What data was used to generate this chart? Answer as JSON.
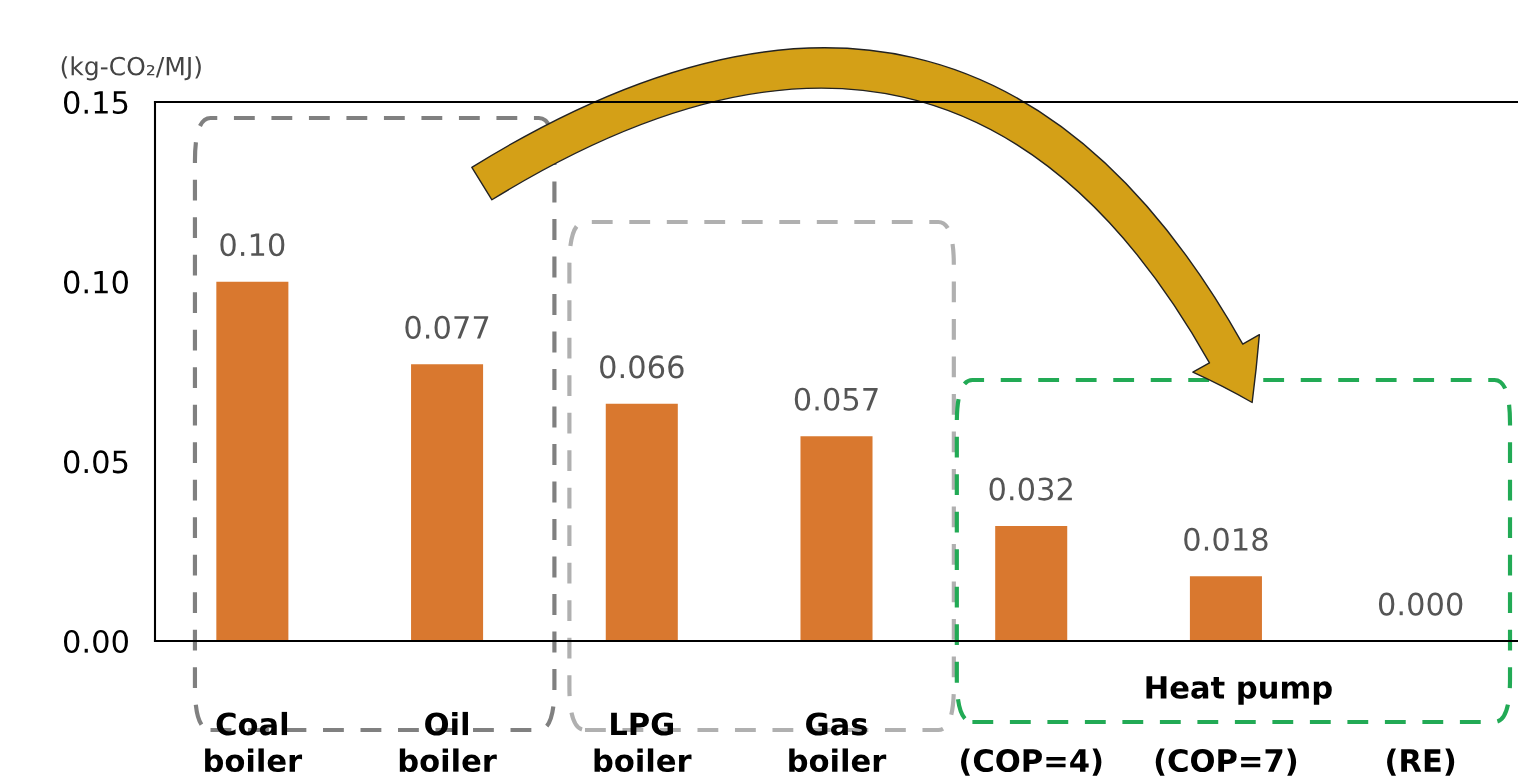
{
  "chart_data": {
    "type": "bar",
    "ylabel": "(kg-CO₂/MJ)",
    "categories": [
      "Coal\nboiler",
      "Oil\nboiler",
      "LPG\nboiler",
      "Gas\nboiler",
      "(COP=4)",
      "(COP=7)",
      "(RE)"
    ],
    "values": [
      0.1,
      0.077,
      0.066,
      0.057,
      0.032,
      0.018,
      0.0
    ],
    "value_labels": [
      "0.10",
      "0.077",
      "0.066",
      "0.057",
      "0.032",
      "0.018",
      "0.000"
    ],
    "color": "#d9782f",
    "ylim": [
      0,
      0.15
    ],
    "yticks": [
      {
        "value": 0,
        "label": "0.00"
      },
      {
        "value": 0.05,
        "label": "0.05"
      },
      {
        "value": 0.1,
        "label": "0.10"
      },
      {
        "value": 0.15,
        "label": "0.15"
      }
    ],
    "annotations": [
      "Heat pump"
    ],
    "grid": false
  }
}
